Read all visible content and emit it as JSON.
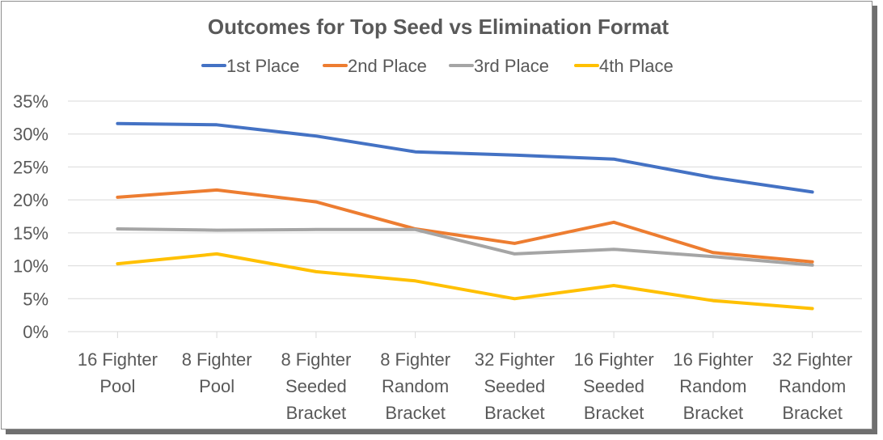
{
  "chart_data": {
    "type": "line",
    "title": "Outcomes for Top Seed vs Elimination Format",
    "categories": [
      [
        "16 Fighter",
        "Pool"
      ],
      [
        "8 Fighter",
        "Pool"
      ],
      [
        "8 Fighter",
        "Seeded",
        "Bracket"
      ],
      [
        "8 Fighter",
        "Random",
        "Bracket"
      ],
      [
        "32 Fighter",
        "Seeded",
        "Bracket"
      ],
      [
        "16 Fighter",
        "Seeded",
        "Bracket"
      ],
      [
        "16 Fighter",
        "Random",
        "Bracket"
      ],
      [
        "32 Fighter",
        "Random",
        "Bracket"
      ]
    ],
    "ylim": [
      0,
      35
    ],
    "yticks": [
      0,
      5,
      10,
      15,
      20,
      25,
      30,
      35
    ],
    "ytick_labels": [
      "0%",
      "5%",
      "10%",
      "15%",
      "20%",
      "25%",
      "30%",
      "35%"
    ],
    "grid": true,
    "legend_position": "top",
    "series": [
      {
        "name": "1st Place",
        "color": "#4472C4",
        "values": [
          31.6,
          31.4,
          29.7,
          27.3,
          26.8,
          26.2,
          23.4,
          21.2
        ]
      },
      {
        "name": "2nd Place",
        "color": "#ED7D31",
        "values": [
          20.4,
          21.5,
          19.7,
          15.6,
          13.4,
          16.6,
          12.0,
          10.6
        ]
      },
      {
        "name": "3rd Place",
        "color": "#A5A5A5",
        "values": [
          15.6,
          15.4,
          15.5,
          15.5,
          11.8,
          12.5,
          11.4,
          10.1
        ]
      },
      {
        "name": "4th Place",
        "color": "#FFC000",
        "values": [
          10.3,
          11.8,
          9.1,
          7.7,
          5.0,
          7.0,
          4.7,
          3.5
        ]
      }
    ]
  }
}
